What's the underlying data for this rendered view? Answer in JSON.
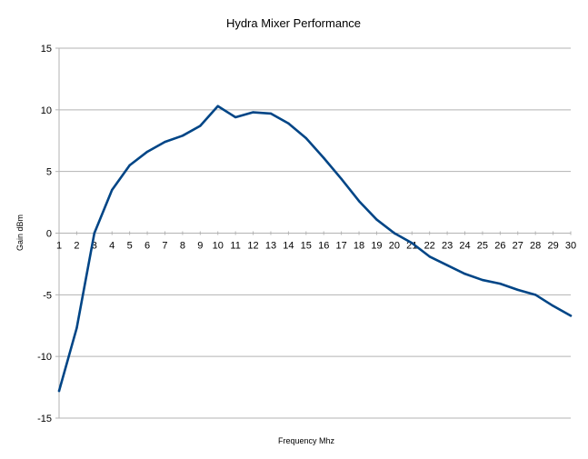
{
  "chart_data": {
    "type": "line",
    "title": "Hydra Mixer Performance",
    "xlabel": "Frequency Mhz",
    "ylabel": "Gain dBm",
    "x": [
      1,
      2,
      3,
      4,
      5,
      6,
      7,
      8,
      9,
      10,
      11,
      12,
      13,
      14,
      15,
      16,
      17,
      18,
      19,
      20,
      21,
      22,
      23,
      24,
      25,
      26,
      27,
      28,
      29,
      30
    ],
    "xlim": [
      1,
      30
    ],
    "ylim": [
      -15,
      15
    ],
    "yticks": [
      15,
      10,
      5,
      0,
      -5,
      -10,
      -15
    ],
    "grid": true,
    "legend": "none",
    "series": [
      {
        "name": "",
        "color": "#004586",
        "values": [
          -12.8,
          -7.7,
          0,
          3.5,
          5.5,
          6.6,
          7.4,
          7.9,
          8.7,
          10.3,
          9.4,
          9.8,
          9.7,
          8.9,
          7.7,
          6.1,
          4.4,
          2.6,
          1.1,
          0,
          -0.8,
          -1.9,
          -2.6,
          -3.3,
          -3.8,
          -4.1,
          -4.6,
          -5.0,
          -5.9,
          -6.7
        ]
      }
    ]
  }
}
